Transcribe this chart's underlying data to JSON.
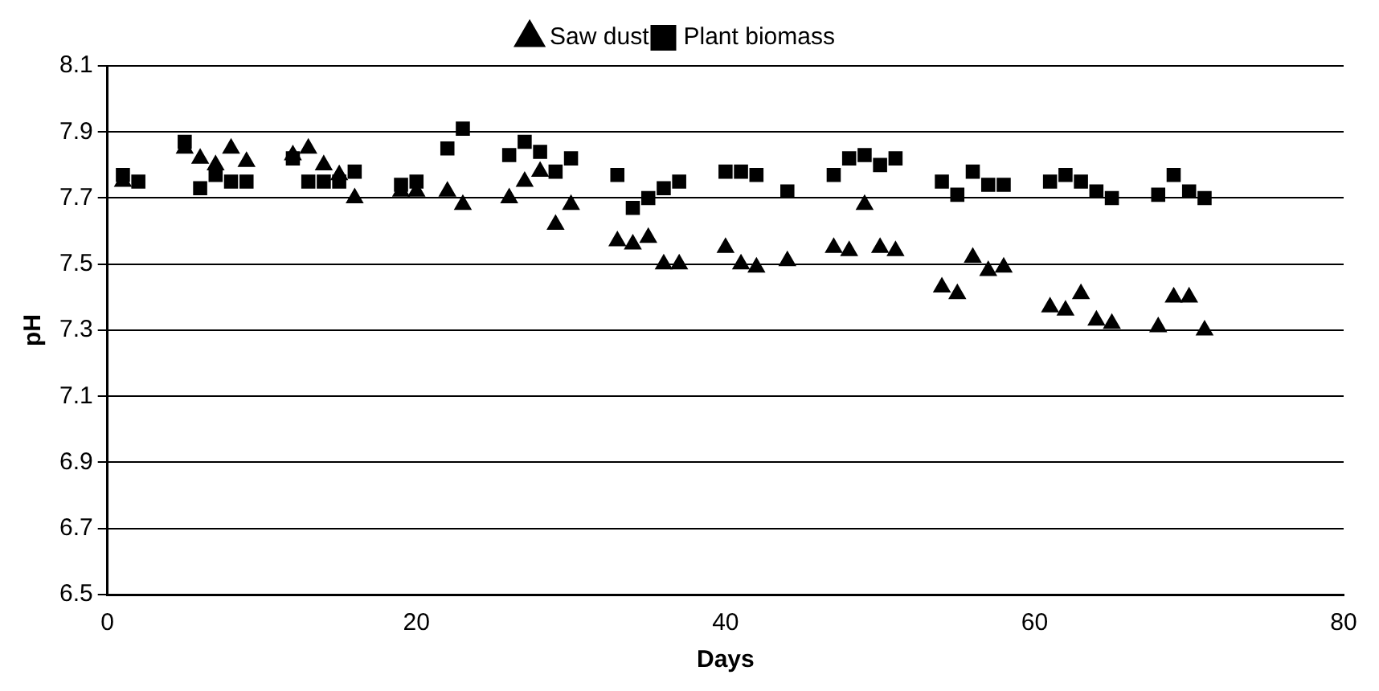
{
  "chart_data": {
    "type": "scatter",
    "xlabel": "Days",
    "ylabel": "pH",
    "xlim": [
      0,
      80
    ],
    "xticks": [
      0,
      20,
      40,
      60,
      80
    ],
    "ylim": [
      6.5,
      8.1
    ],
    "yticks": [
      6.5,
      6.7,
      6.9,
      7.1,
      7.3,
      7.5,
      7.7,
      7.9,
      8.1
    ],
    "grid": "y",
    "legend": "top",
    "series": [
      {
        "name": "Saw dust",
        "color": "#000000",
        "marker": "triangle",
        "x": [
          1,
          5,
          6,
          7,
          8,
          9,
          12,
          13,
          14,
          15,
          16,
          19,
          20,
          22,
          23,
          26,
          27,
          28,
          29,
          30,
          33,
          34,
          35,
          36,
          37,
          40,
          41,
          42,
          44,
          47,
          48,
          49,
          50,
          51,
          54,
          55,
          56,
          57,
          58,
          61,
          62,
          63,
          64,
          65,
          68,
          69,
          70,
          71
        ],
        "values": [
          7.75,
          7.85,
          7.82,
          7.8,
          7.85,
          7.81,
          7.83,
          7.85,
          7.8,
          7.77,
          7.7,
          7.72,
          7.72,
          7.72,
          7.68,
          7.7,
          7.75,
          7.78,
          7.62,
          7.68,
          7.57,
          7.56,
          7.58,
          7.5,
          7.5,
          7.55,
          7.5,
          7.49,
          7.51,
          7.55,
          7.54,
          7.68,
          7.55,
          7.54,
          7.43,
          7.41,
          7.52,
          7.48,
          7.49,
          7.37,
          7.36,
          7.41,
          7.33,
          7.32,
          7.31,
          7.4,
          7.4,
          7.3
        ]
      },
      {
        "name": "Plant biomass",
        "color": "#000000",
        "marker": "square",
        "x": [
          1,
          2,
          5,
          6,
          7,
          8,
          9,
          12,
          13,
          14,
          15,
          16,
          19,
          20,
          22,
          23,
          26,
          27,
          28,
          29,
          30,
          33,
          34,
          35,
          36,
          37,
          40,
          41,
          42,
          44,
          47,
          48,
          49,
          50,
          51,
          54,
          55,
          56,
          57,
          58,
          61,
          62,
          63,
          64,
          65,
          68,
          69,
          70,
          71
        ],
        "values": [
          7.77,
          7.75,
          7.87,
          7.73,
          7.77,
          7.75,
          7.75,
          7.82,
          7.75,
          7.75,
          7.75,
          7.78,
          7.74,
          7.75,
          7.85,
          7.91,
          7.83,
          7.87,
          7.84,
          7.78,
          7.82,
          7.77,
          7.67,
          7.7,
          7.73,
          7.75,
          7.78,
          7.78,
          7.77,
          7.72,
          7.77,
          7.82,
          7.83,
          7.8,
          7.82,
          7.75,
          7.71,
          7.78,
          7.74,
          7.74,
          7.75,
          7.77,
          7.75,
          7.72,
          7.7,
          7.71,
          7.77,
          7.72,
          7.7
        ]
      }
    ]
  }
}
